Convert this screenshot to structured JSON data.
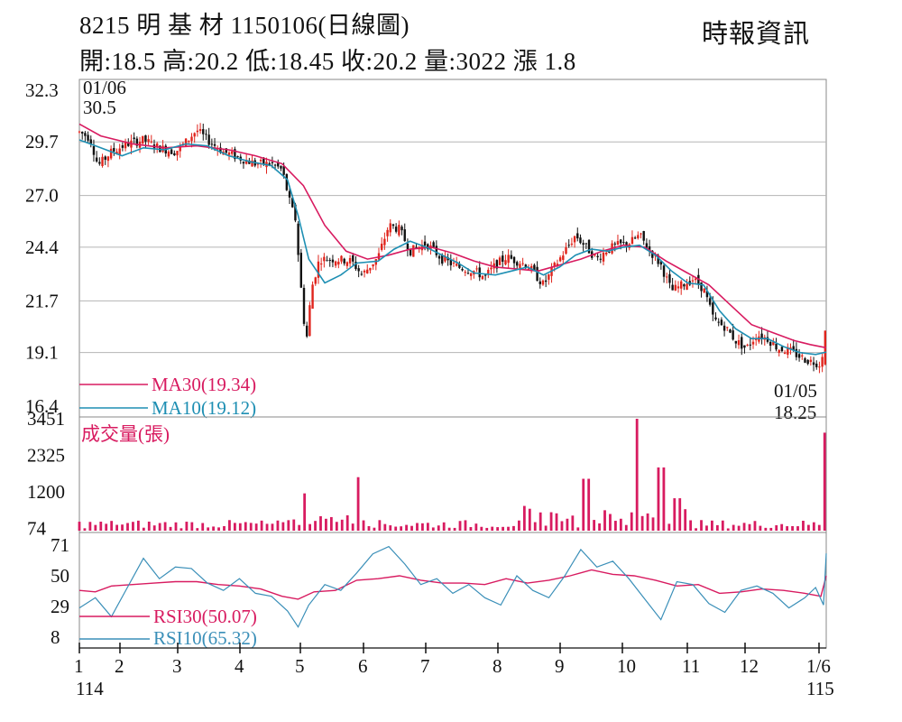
{
  "header": {
    "title": "8215 明 基 材 1150106(日線圖)",
    "quote": "開:18.5 高:20.2 低:18.45 收:20.2 量:3022 漲 1.8",
    "source": "時報資訊"
  },
  "colors": {
    "up": "#e0241c",
    "down": "#111111",
    "ma30": "#d81b60",
    "ma10": "#1e8fb3",
    "volume": "#d81b60",
    "rsi30": "#d81b60",
    "rsi10": "#3a8fb8",
    "grid": "#b5b5b5"
  },
  "chart_data": [
    {
      "type": "candlestick",
      "title": "8215 明 基 材 1150106(日線圖)",
      "y_ticks": [
        "32.3",
        "29.7",
        "27.0",
        "24.4",
        "21.7",
        "19.1",
        "16.4"
      ],
      "ylim": [
        16.4,
        32.3
      ],
      "max_annotation": {
        "date": "01/06",
        "value": "30.5"
      },
      "min_annotation": {
        "date": "01/05",
        "value": "18.25"
      },
      "latest": {
        "open": 18.5,
        "high": 20.2,
        "low": 18.45,
        "close": 20.2
      },
      "price_path": [
        [
          0,
          30.2
        ],
        [
          0.2,
          29.9
        ],
        [
          0.35,
          28.5
        ],
        [
          0.6,
          29.2
        ],
        [
          0.9,
          29.6
        ],
        [
          1.2,
          29.8
        ],
        [
          1.5,
          29.4
        ],
        [
          1.8,
          29.2
        ],
        [
          2.0,
          29.7
        ],
        [
          2.2,
          30.3
        ],
        [
          2.4,
          29.8
        ],
        [
          2.7,
          29.2
        ],
        [
          3.0,
          28.9
        ],
        [
          3.3,
          28.6
        ],
        [
          3.6,
          28.6
        ],
        [
          3.8,
          28.3
        ],
        [
          3.95,
          26.6
        ],
        [
          4.05,
          25.8
        ],
        [
          4.15,
          22.5
        ],
        [
          4.25,
          19.5
        ],
        [
          4.35,
          22.3
        ],
        [
          4.5,
          23.8
        ],
        [
          4.8,
          23.8
        ],
        [
          5.1,
          23.7
        ],
        [
          5.3,
          23.0
        ],
        [
          5.6,
          23.9
        ],
        [
          5.8,
          25.5
        ],
        [
          6.0,
          25.3
        ],
        [
          6.2,
          24.2
        ],
        [
          6.5,
          24.6
        ],
        [
          6.8,
          23.8
        ],
        [
          7.1,
          23.4
        ],
        [
          7.4,
          23.2
        ],
        [
          7.6,
          22.9
        ],
        [
          7.8,
          23.5
        ],
        [
          8.0,
          23.9
        ],
        [
          8.2,
          23.7
        ],
        [
          8.4,
          23.5
        ],
        [
          8.7,
          22.5
        ],
        [
          8.9,
          23.4
        ],
        [
          9.1,
          24.2
        ],
        [
          9.3,
          25.0
        ],
        [
          9.5,
          24.4
        ],
        [
          9.7,
          23.8
        ],
        [
          9.9,
          24.3
        ],
        [
          10.1,
          24.5
        ],
        [
          10.3,
          24.6
        ],
        [
          10.5,
          25.0
        ],
        [
          10.7,
          24.2
        ],
        [
          10.9,
          23.5
        ],
        [
          11.1,
          22.2
        ],
        [
          11.3,
          22.5
        ],
        [
          11.5,
          22.8
        ],
        [
          11.7,
          22.3
        ],
        [
          11.9,
          20.7
        ],
        [
          12.1,
          20.4
        ],
        [
          12.3,
          19.7
        ],
        [
          12.5,
          19.3
        ],
        [
          12.7,
          20.0
        ],
        [
          12.9,
          19.8
        ],
        [
          13.1,
          19.3
        ],
        [
          13.3,
          19.2
        ],
        [
          13.5,
          18.9
        ],
        [
          13.65,
          18.7
        ],
        [
          13.8,
          18.6
        ],
        [
          13.9,
          18.5
        ],
        [
          13.98,
          20.2
        ]
      ],
      "series": [
        {
          "name": "MA30(19.34)",
          "values": [
            [
              0,
              30.6
            ],
            [
              0.4,
              30.0
            ],
            [
              1.0,
              29.6
            ],
            [
              1.6,
              29.4
            ],
            [
              2.2,
              29.5
            ],
            [
              2.8,
              29.3
            ],
            [
              3.3,
              29.0
            ],
            [
              3.8,
              28.6
            ],
            [
              4.2,
              27.5
            ],
            [
              4.6,
              25.5
            ],
            [
              5.0,
              24.2
            ],
            [
              5.4,
              23.8
            ],
            [
              5.8,
              24.0
            ],
            [
              6.2,
              24.3
            ],
            [
              6.6,
              24.4
            ],
            [
              7.0,
              24.1
            ],
            [
              7.4,
              23.7
            ],
            [
              7.8,
              23.4
            ],
            [
              8.2,
              23.3
            ],
            [
              8.6,
              23.2
            ],
            [
              9.0,
              23.5
            ],
            [
              9.4,
              23.8
            ],
            [
              9.8,
              24.2
            ],
            [
              10.2,
              24.5
            ],
            [
              10.6,
              24.4
            ],
            [
              11.0,
              23.7
            ],
            [
              11.4,
              23.1
            ],
            [
              11.8,
              22.5
            ],
            [
              12.2,
              21.5
            ],
            [
              12.6,
              20.5
            ],
            [
              13.0,
              20.1
            ],
            [
              13.4,
              19.7
            ],
            [
              13.7,
              19.5
            ],
            [
              14.0,
              19.34
            ]
          ]
        },
        {
          "name": "MA10(19.12)",
          "values": [
            [
              0,
              29.8
            ],
            [
              0.4,
              29.4
            ],
            [
              0.8,
              29.0
            ],
            [
              1.2,
              29.4
            ],
            [
              1.6,
              29.3
            ],
            [
              2.0,
              29.6
            ],
            [
              2.4,
              29.5
            ],
            [
              2.8,
              29.0
            ],
            [
              3.2,
              28.7
            ],
            [
              3.6,
              28.5
            ],
            [
              3.9,
              27.8
            ],
            [
              4.1,
              26.0
            ],
            [
              4.3,
              23.8
            ],
            [
              4.6,
              22.6
            ],
            [
              4.9,
              23.0
            ],
            [
              5.2,
              23.6
            ],
            [
              5.6,
              23.7
            ],
            [
              5.9,
              24.3
            ],
            [
              6.2,
              24.7
            ],
            [
              6.5,
              24.4
            ],
            [
              6.8,
              24.0
            ],
            [
              7.1,
              23.6
            ],
            [
              7.4,
              23.1
            ],
            [
              7.8,
              23.0
            ],
            [
              8.1,
              23.2
            ],
            [
              8.4,
              23.4
            ],
            [
              8.7,
              23.0
            ],
            [
              9.0,
              23.4
            ],
            [
              9.3,
              24.0
            ],
            [
              9.6,
              24.3
            ],
            [
              9.9,
              24.2
            ],
            [
              10.2,
              24.4
            ],
            [
              10.5,
              24.5
            ],
            [
              10.8,
              24.0
            ],
            [
              11.1,
              23.2
            ],
            [
              11.4,
              22.6
            ],
            [
              11.7,
              22.5
            ],
            [
              12.0,
              21.2
            ],
            [
              12.3,
              20.3
            ],
            [
              12.6,
              19.8
            ],
            [
              12.9,
              19.8
            ],
            [
              13.2,
              19.4
            ],
            [
              13.5,
              19.1
            ],
            [
              13.8,
              19.0
            ],
            [
              14.0,
              19.12
            ]
          ]
        }
      ]
    },
    {
      "type": "bar",
      "title": "成交量(張)",
      "y_ticks": [
        "3451",
        "2325",
        "1200",
        "74"
      ],
      "ylim": [
        0,
        3451
      ],
      "spikes": [
        [
          0.7,
          180
        ],
        [
          4.2,
          1150
        ],
        [
          5.25,
          1650
        ],
        [
          9.5,
          1600
        ],
        [
          10.45,
          3451
        ],
        [
          10.9,
          1950
        ],
        [
          11.2,
          1000
        ],
        [
          13.97,
          3022
        ]
      ]
    },
    {
      "type": "line",
      "title": "RSI",
      "y_ticks": [
        "71",
        "50",
        "29",
        "8"
      ],
      "ylim": [
        8,
        71
      ],
      "series": [
        {
          "name": "RSI30(50.07)",
          "values": [
            [
              0,
              40
            ],
            [
              0.3,
              39
            ],
            [
              0.6,
              43
            ],
            [
              1.0,
              44
            ],
            [
              1.4,
              45
            ],
            [
              1.8,
              46
            ],
            [
              2.2,
              46
            ],
            [
              2.6,
              44
            ],
            [
              3.0,
              43
            ],
            [
              3.4,
              41
            ],
            [
              3.8,
              36
            ],
            [
              4.1,
              34
            ],
            [
              4.4,
              39
            ],
            [
              4.8,
              40
            ],
            [
              5.2,
              47
            ],
            [
              5.6,
              48
            ],
            [
              6.0,
              50
            ],
            [
              6.4,
              47
            ],
            [
              6.8,
              45
            ],
            [
              7.2,
              45
            ],
            [
              7.6,
              44
            ],
            [
              8.0,
              48
            ],
            [
              8.4,
              45
            ],
            [
              8.8,
              47
            ],
            [
              9.2,
              50
            ],
            [
              9.6,
              54
            ],
            [
              10.0,
              51
            ],
            [
              10.4,
              50
            ],
            [
              10.8,
              47
            ],
            [
              11.2,
              43
            ],
            [
              11.6,
              44
            ],
            [
              12.0,
              38
            ],
            [
              12.4,
              39
            ],
            [
              12.8,
              41
            ],
            [
              13.2,
              40
            ],
            [
              13.6,
              38
            ],
            [
              13.9,
              36
            ],
            [
              14.0,
              50.07
            ]
          ]
        },
        {
          "name": "RSI10(65.32)",
          "values": [
            [
              0,
              28
            ],
            [
              0.3,
              35
            ],
            [
              0.6,
              22
            ],
            [
              0.9,
              42
            ],
            [
              1.2,
              62
            ],
            [
              1.5,
              48
            ],
            [
              1.8,
              56
            ],
            [
              2.1,
              55
            ],
            [
              2.4,
              45
            ],
            [
              2.7,
              40
            ],
            [
              3.0,
              48
            ],
            [
              3.3,
              38
            ],
            [
              3.6,
              36
            ],
            [
              3.9,
              26
            ],
            [
              4.1,
              15
            ],
            [
              4.3,
              30
            ],
            [
              4.6,
              44
            ],
            [
              4.9,
              40
            ],
            [
              5.2,
              52
            ],
            [
              5.5,
              65
            ],
            [
              5.8,
              70
            ],
            [
              6.1,
              58
            ],
            [
              6.4,
              44
            ],
            [
              6.7,
              48
            ],
            [
              7.0,
              38
            ],
            [
              7.3,
              44
            ],
            [
              7.6,
              35
            ],
            [
              7.9,
              30
            ],
            [
              8.2,
              50
            ],
            [
              8.5,
              40
            ],
            [
              8.8,
              35
            ],
            [
              9.1,
              50
            ],
            [
              9.4,
              68
            ],
            [
              9.7,
              56
            ],
            [
              10.0,
              60
            ],
            [
              10.3,
              48
            ],
            [
              10.6,
              34
            ],
            [
              10.9,
              20
            ],
            [
              11.2,
              46
            ],
            [
              11.5,
              44
            ],
            [
              11.8,
              31
            ],
            [
              12.1,
              25
            ],
            [
              12.4,
              40
            ],
            [
              12.7,
              43
            ],
            [
              13.0,
              38
            ],
            [
              13.3,
              28
            ],
            [
              13.6,
              35
            ],
            [
              13.8,
              42
            ],
            [
              13.95,
              30
            ],
            [
              14.0,
              65.32
            ]
          ]
        }
      ]
    }
  ],
  "x_axis": {
    "month_labels": [
      "1",
      "2",
      "3",
      "4",
      "5",
      "6",
      "7",
      "8",
      "9",
      "10",
      "11",
      "12",
      "1/6"
    ],
    "month_positions": [
      0,
      1,
      2,
      3,
      4,
      5,
      6,
      7,
      8,
      9,
      10,
      11,
      12
    ],
    "year_labels": [
      "114",
      "115"
    ]
  }
}
